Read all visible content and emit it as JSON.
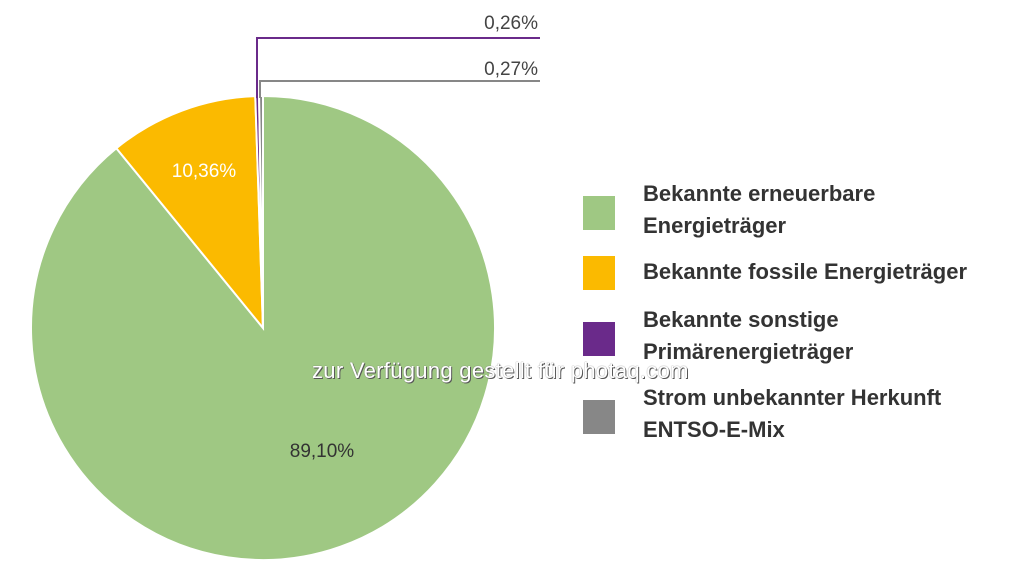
{
  "chart_data": {
    "type": "pie",
    "slices": [
      {
        "label": "Bekannte erneuerbare\nEnergieträger",
        "value": 89.1,
        "value_label": "89,10%",
        "color": "#9fc883"
      },
      {
        "label": "Bekannte fossile Energieträger",
        "value": 10.36,
        "value_label": "10,36%",
        "color": "#fbba00"
      },
      {
        "label": "Bekannte sonstige\nPrimärenergieträger",
        "value": 0.26,
        "value_label": "0,26%",
        "color": "#6a2a8a"
      },
      {
        "label": "Strom unbekannter Herkunft\nENTSO-E-Mix",
        "value": 0.27,
        "value_label": "0,27%",
        "color": "#878787"
      }
    ],
    "start": "12 o'clock",
    "direction": "clockwise",
    "legend_position": "right"
  },
  "watermark": "zur Verfügung gestellt für photaq.com"
}
